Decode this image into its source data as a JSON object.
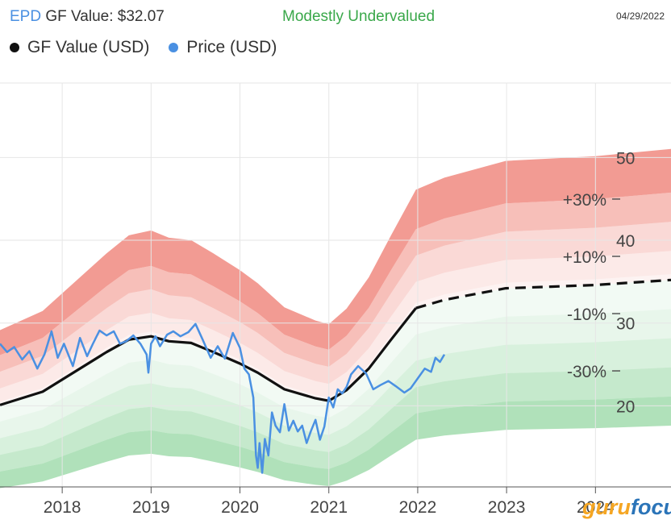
{
  "header": {
    "ticker": "EPD",
    "title_text": "GF Value: $32.07",
    "rating": "Modestly Undervalued",
    "date": "04/29/2022"
  },
  "legend": [
    {
      "label": "GF Value (USD)",
      "color": "#111111"
    },
    {
      "label": "Price (USD)",
      "color": "#4a90e2"
    }
  ],
  "watermark": {
    "part1": "guru",
    "part2": "focus"
  },
  "colors": {
    "gf_line": "#111111",
    "price_line": "#4a90e2",
    "upper_band": "#f08a80",
    "lower_band": "#7fcf8f",
    "grid": "#e6e6e6"
  },
  "chart_data": {
    "type": "line",
    "x_ticks": [
      "2018",
      "2019",
      "2020",
      "2021",
      "2022",
      "2023",
      "2024"
    ],
    "xlim": [
      2017.3,
      2024.85
    ],
    "ylim": [
      10.2,
      59
    ],
    "y_ticks": [
      20,
      30,
      40,
      50
    ],
    "band_labels": [
      "+30%",
      "+10%",
      "-10%",
      "-30%"
    ],
    "grid": true,
    "legend_position": "top-left",
    "gf_value": {
      "x": [
        2017.3,
        2017.78,
        2018.5,
        2018.75,
        2019.0,
        2019.2,
        2019.45,
        2019.7,
        2020.0,
        2020.2,
        2020.5,
        2020.85,
        2021.0,
        2021.2,
        2021.45,
        2021.7,
        2021.98,
        2022.3,
        2022.99,
        2023.5,
        2024.0,
        2024.85
      ],
      "y": [
        20.1,
        21.7,
        26.5,
        28.0,
        28.4,
        27.8,
        27.6,
        26.5,
        25.1,
        24.0,
        22.0,
        20.9,
        20.6,
        21.9,
        24.5,
        28.0,
        31.8,
        32.8,
        34.2,
        34.4,
        34.6,
        35.2
      ],
      "projected_from": 2021.98
    },
    "price": {
      "x": [
        2017.3,
        2017.38,
        2017.46,
        2017.55,
        2017.63,
        2017.72,
        2017.8,
        2017.88,
        2017.95,
        2018.02,
        2018.12,
        2018.2,
        2018.28,
        2018.35,
        2018.42,
        2018.5,
        2018.58,
        2018.65,
        2018.72,
        2018.8,
        2018.88,
        2018.95,
        2018.97,
        2019.0,
        2019.05,
        2019.1,
        2019.18,
        2019.25,
        2019.33,
        2019.42,
        2019.5,
        2019.58,
        2019.67,
        2019.75,
        2019.83,
        2019.92,
        2020.0,
        2020.05,
        2020.1,
        2020.15,
        2020.18,
        2020.2,
        2020.22,
        2020.25,
        2020.28,
        2020.32,
        2020.36,
        2020.4,
        2020.45,
        2020.5,
        2020.55,
        2020.6,
        2020.65,
        2020.7,
        2020.75,
        2020.8,
        2020.85,
        2020.9,
        2020.95,
        2021.0,
        2021.05,
        2021.1,
        2021.15,
        2021.2,
        2021.25,
        2021.33,
        2021.42,
        2021.5,
        2021.58,
        2021.67,
        2021.75,
        2021.85,
        2021.92,
        2022.0,
        2022.08,
        2022.15,
        2022.2,
        2022.25,
        2022.3
      ],
      "y": [
        27.5,
        26.5,
        27.1,
        25.6,
        26.6,
        24.5,
        26.2,
        29.0,
        25.8,
        27.5,
        24.8,
        28.2,
        26.0,
        27.6,
        29.1,
        28.5,
        29.0,
        27.5,
        27.8,
        28.5,
        27.5,
        26.2,
        24.0,
        27.5,
        28.4,
        27.2,
        28.6,
        29.0,
        28.4,
        28.9,
        29.9,
        28.0,
        25.8,
        27.2,
        25.7,
        28.8,
        27.0,
        24.5,
        23.8,
        21.0,
        14.0,
        12.5,
        15.5,
        11.9,
        16.0,
        14.0,
        19.2,
        17.6,
        16.8,
        20.2,
        17.0,
        18.2,
        16.9,
        17.6,
        15.5,
        17.0,
        18.3,
        15.9,
        17.5,
        21.0,
        19.8,
        22.0,
        21.5,
        22.3,
        23.8,
        24.8,
        23.9,
        22.0,
        22.5,
        23.0,
        22.4,
        21.6,
        22.1,
        23.3,
        24.5,
        24.1,
        25.8,
        25.3,
        26.2
      ]
    }
  }
}
